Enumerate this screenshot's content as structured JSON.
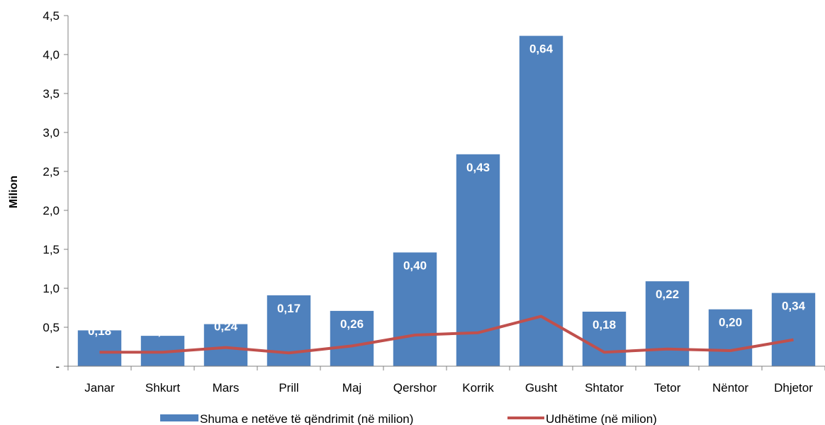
{
  "chart_data": {
    "type": "bar",
    "title": "",
    "xlabel": "",
    "ylabel": "Milion",
    "ylim": [
      0,
      4.5
    ],
    "yticks": [
      "-",
      "0,5",
      "1,0",
      "1,5",
      "2,0",
      "2,5",
      "3,0",
      "3,5",
      "4,0",
      "4,5"
    ],
    "categories": [
      "Janar",
      "Shkurt",
      "Mars",
      "Prill",
      "Maj",
      "Qershor",
      "Korrik",
      "Gusht",
      "Shtator",
      "Tetor",
      "Nëntor",
      "Dhjetor"
    ],
    "series": [
      {
        "name": "Shuma e netëve të qëndrimit (në milion)",
        "kind": "bar",
        "color": "#4f81bd",
        "values": [
          0.46,
          0.39,
          0.54,
          0.91,
          0.71,
          1.46,
          2.72,
          4.24,
          0.7,
          1.09,
          0.73,
          0.94
        ]
      },
      {
        "name": "Udhëtime (në milion)",
        "kind": "line",
        "color": "#c0504d",
        "values": [
          0.18,
          0.18,
          0.24,
          0.17,
          0.26,
          0.4,
          0.43,
          0.64,
          0.18,
          0.22,
          0.2,
          0.34
        ],
        "labels": [
          "0,18",
          "0,18",
          "0,24",
          "0,17",
          "0,26",
          "0,40",
          "0,43",
          "0,64",
          "0,18",
          "0,22",
          "0,20",
          "0,34"
        ]
      }
    ],
    "grid": false,
    "legend_position": "bottom"
  }
}
